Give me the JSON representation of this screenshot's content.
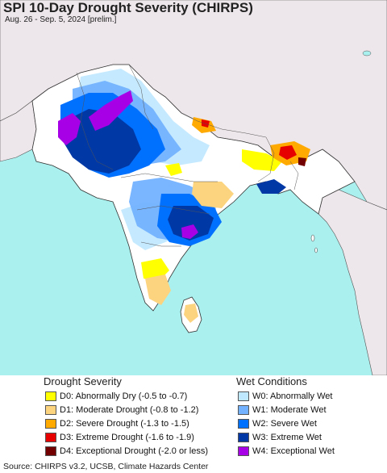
{
  "title": "SPI 10-Day Drought Severity (CHIRPS)",
  "subtitle": "Aug. 26 - Sep. 5, 2024 [prelim.]",
  "colors": {
    "ocean": "#aaf0ee",
    "land_outside": "#ede6ea",
    "land_normal": "#ffffff",
    "border": "#333333"
  },
  "legend": {
    "drought": {
      "heading": "Drought Severity",
      "items": [
        {
          "label": "D0: Abnormally Dry (-0.5 to -0.7)",
          "color": "#ffff00"
        },
        {
          "label": "D1: Moderate Drought (-0.8 to -1.2)",
          "color": "#fcd37f"
        },
        {
          "label": "D2: Severe Drought (-1.3 to -1.5)",
          "color": "#ffaa00"
        },
        {
          "label": "D3: Extreme Drought (-1.6 to -1.9)",
          "color": "#e60000"
        },
        {
          "label": "D4: Exceptional Drought (-2.0 or less)",
          "color": "#730000"
        }
      ]
    },
    "wet": {
      "heading": "Wet Conditions",
      "items": [
        {
          "label": "W0: Abnormally Wet",
          "color": "#bfe8ff"
        },
        {
          "label": "W1: Moderate Wet",
          "color": "#73b2ff"
        },
        {
          "label": "W2: Severe Wet",
          "color": "#0070ff"
        },
        {
          "label": "W3: Extreme Wet",
          "color": "#0039a6"
        },
        {
          "label": "W4: Exceptional Wet",
          "color": "#a800e6"
        }
      ]
    }
  },
  "source": "Source: CHIRPS v3.2, UCSB, Climate Hazards Center"
}
